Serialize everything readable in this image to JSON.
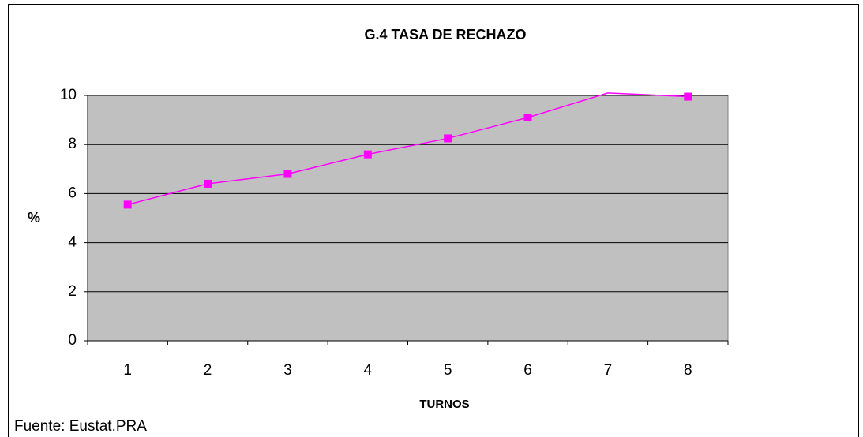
{
  "chart_data": {
    "type": "line",
    "title": "G.4 TASA DE RECHAZO",
    "x_label": "TURNOS",
    "y_label": "%",
    "source": "Fuente: Eustat.PRA",
    "categories": [
      "1",
      "2",
      "3",
      "4",
      "5",
      "6",
      "7",
      "8"
    ],
    "values": [
      5.55,
      6.4,
      6.8,
      7.6,
      8.25,
      9.1,
      10.1,
      9.95
    ],
    "color": "#ff00ff",
    "ylim": [
      0,
      10
    ],
    "yticks": [
      0,
      2,
      4,
      6,
      8,
      10
    ],
    "grid": true
  }
}
